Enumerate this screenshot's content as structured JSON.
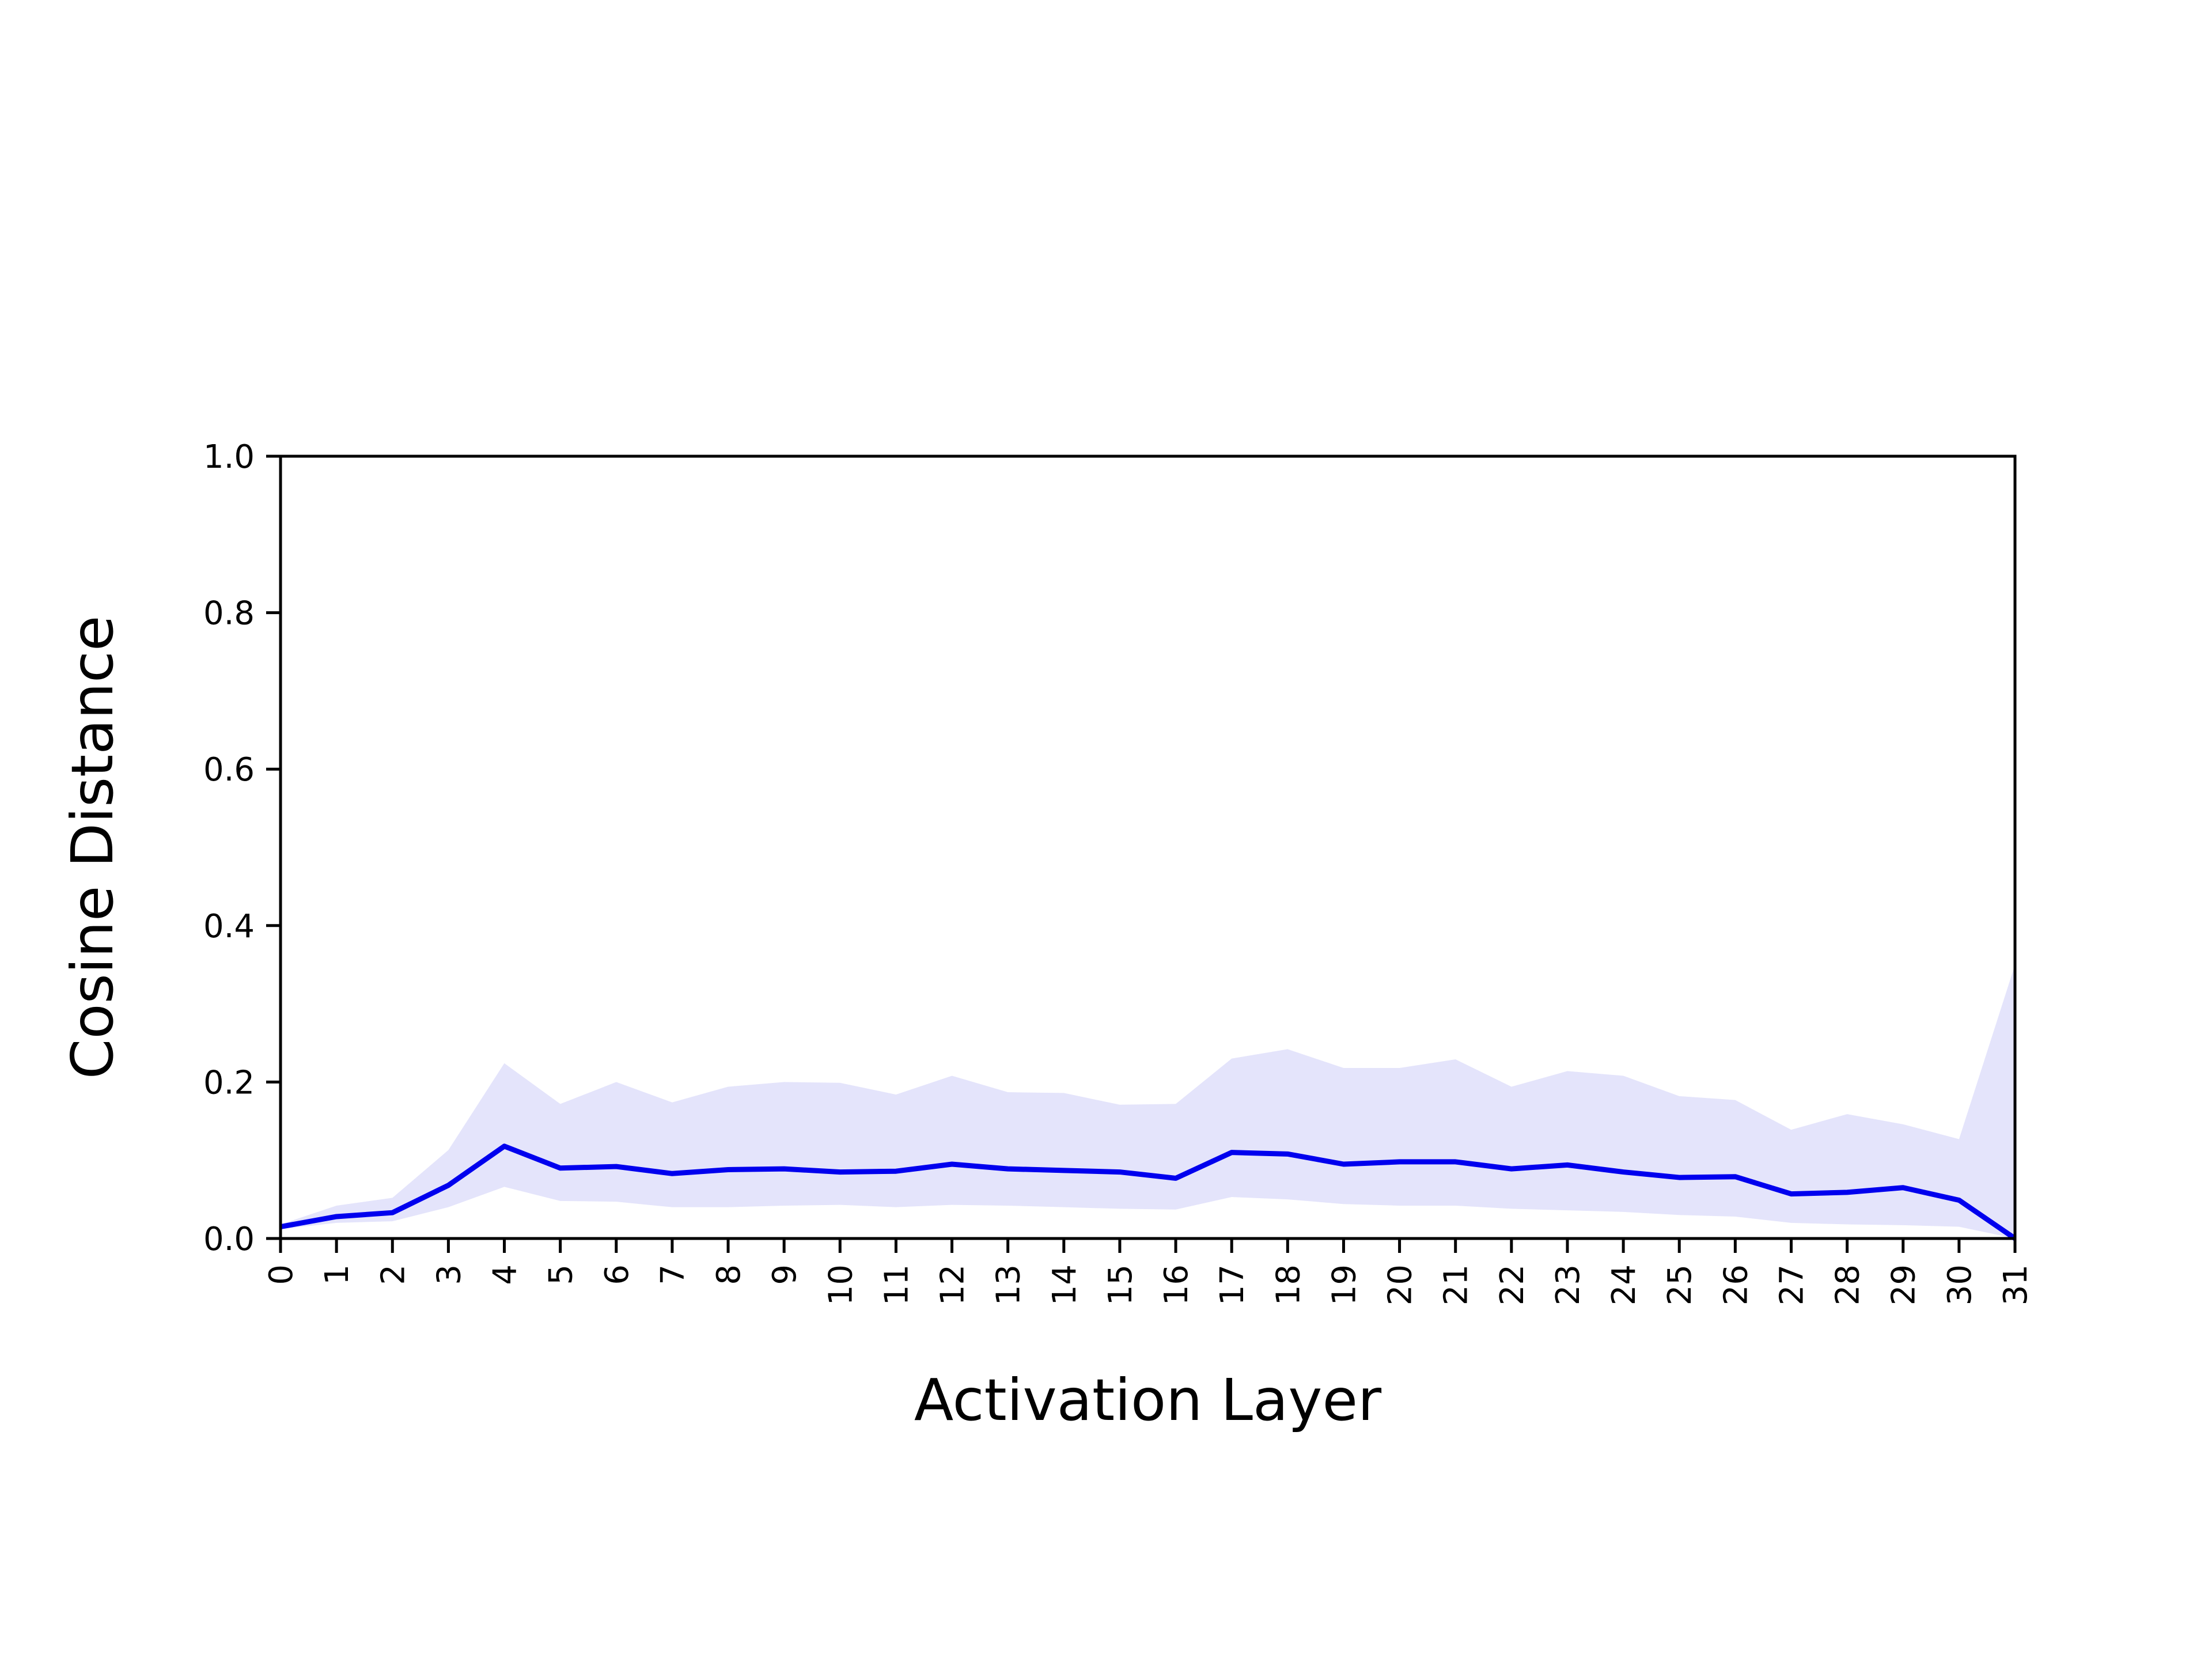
{
  "chart_data": {
    "type": "line",
    "title": "",
    "xlabel": "Activation Layer",
    "ylabel": "Cosine Distance",
    "xlim": [
      0,
      31
    ],
    "ylim": [
      0,
      1.0
    ],
    "grid": false,
    "x": [
      0,
      1,
      2,
      3,
      4,
      5,
      6,
      7,
      8,
      9,
      10,
      11,
      12,
      13,
      14,
      15,
      16,
      17,
      18,
      19,
      20,
      21,
      22,
      23,
      24,
      25,
      26,
      27,
      28,
      29,
      30,
      31
    ],
    "xticks": [
      "0",
      "1",
      "2",
      "3",
      "4",
      "5",
      "6",
      "7",
      "8",
      "9",
      "10",
      "11",
      "12",
      "13",
      "14",
      "15",
      "16",
      "17",
      "18",
      "19",
      "20",
      "21",
      "22",
      "23",
      "24",
      "25",
      "26",
      "27",
      "28",
      "29",
      "30",
      "31"
    ],
    "yticks": [
      "0.0",
      "0.2",
      "0.4",
      "0.6",
      "0.8",
      "1.0"
    ],
    "series": [
      {
        "values": [
          0.015,
          0.028,
          0.033,
          0.068,
          0.118,
          0.09,
          0.092,
          0.083,
          0.088,
          0.089,
          0.085,
          0.086,
          0.095,
          0.089,
          0.087,
          0.085,
          0.077,
          0.11,
          0.108,
          0.095,
          0.098,
          0.098,
          0.089,
          0.094,
          0.085,
          0.078,
          0.079,
          0.057,
          0.059,
          0.065,
          0.049,
          0.0
        ],
        "lower": [
          0.012,
          0.02,
          0.022,
          0.04,
          0.066,
          0.048,
          0.047,
          0.04,
          0.04,
          0.042,
          0.043,
          0.04,
          0.043,
          0.042,
          0.04,
          0.038,
          0.037,
          0.053,
          0.05,
          0.044,
          0.042,
          0.042,
          0.038,
          0.036,
          0.034,
          0.03,
          0.028,
          0.02,
          0.018,
          0.017,
          0.015,
          0.0
        ],
        "upper": [
          0.018,
          0.042,
          0.052,
          0.113,
          0.224,
          0.172,
          0.2,
          0.174,
          0.194,
          0.2,
          0.199,
          0.184,
          0.208,
          0.187,
          0.186,
          0.171,
          0.172,
          0.23,
          0.242,
          0.218,
          0.218,
          0.229,
          0.194,
          0.214,
          0.208,
          0.182,
          0.177,
          0.139,
          0.159,
          0.146,
          0.127,
          0.35
        ]
      }
    ],
    "colors": {
      "line": "#0000ee",
      "band": "#e4e4fb"
    }
  }
}
